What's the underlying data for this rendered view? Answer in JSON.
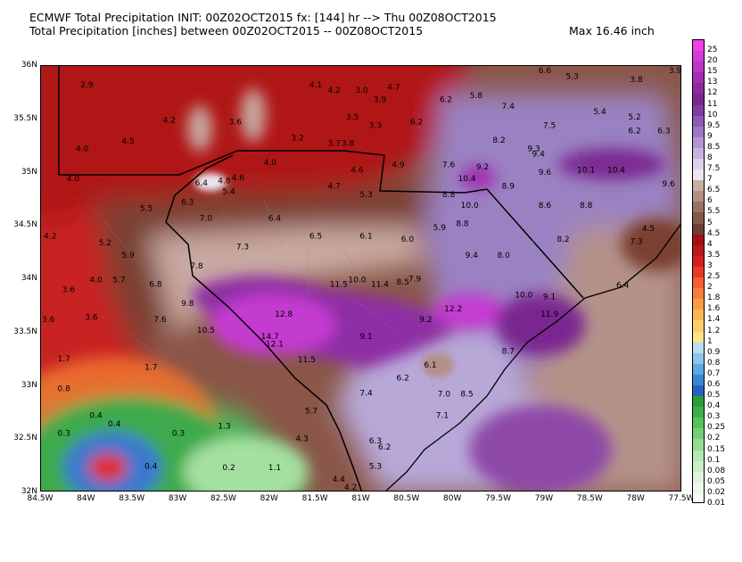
{
  "header": {
    "line1": "ECMWF Total Precipitation INIT: 00Z02OCT2015 fx: [144] hr --> Thu 00Z08OCT2015",
    "line2": "Total Precipitation [inches] between 00Z02OCT2015 -- 00Z08OCT2015",
    "max_label": "Max 16.46 inch"
  },
  "lat_labels": [
    "36N",
    "35.5N",
    "35N",
    "34.5N",
    "34N",
    "33.5N",
    "33N",
    "32.5N",
    "32N"
  ],
  "lon_labels": [
    "84.5W",
    "84W",
    "83.5W",
    "83W",
    "82.5W",
    "82W",
    "81.5W",
    "81W",
    "80.5W",
    "80W",
    "79.5W",
    "79W",
    "78.5W",
    "78W",
    "77.5W"
  ],
  "map_extent": {
    "lon_min": -84.5,
    "lon_max": -77.5,
    "lat_min": 32,
    "lat_max": 36
  },
  "colorbar": {
    "levels": [
      "25",
      "20",
      "15",
      "13",
      "12",
      "11",
      "10",
      "9.5",
      "9",
      "8.5",
      "8",
      "7.5",
      "7",
      "6.5",
      "6",
      "5.5",
      "5",
      "4.5",
      "4",
      "3.5",
      "3",
      "2.5",
      "2",
      "1.8",
      "1.6",
      "1.4",
      "1.2",
      "1",
      "0.9",
      "0.8",
      "0.7",
      "0.6",
      "0.5",
      "0.4",
      "0.3",
      "0.25",
      "0.2",
      "0.15",
      "0.1",
      "0.08",
      "0.05",
      "0.02",
      "0.01"
    ],
    "colors": [
      "#f03ee8",
      "#d43ad8",
      "#bc35c4",
      "#a22fb0",
      "#8c2a9c",
      "#7a2890",
      "#7c3ea2",
      "#8c5ab2",
      "#9e78c2",
      "#b296d2",
      "#c6b4e0",
      "#dcd2ec",
      "#ece6f0",
      "#c9aea6",
      "#b48f84",
      "#9c7266",
      "#86584c",
      "#6e3e34",
      "#a01010",
      "#bc1818",
      "#d42020",
      "#e83828",
      "#f45e30",
      "#f67e3c",
      "#f89c48",
      "#fab656",
      "#fccf66",
      "#fde48a",
      "#b8dcf4",
      "#8cc4ec",
      "#5ea8e2",
      "#3a86d2",
      "#2a60c0",
      "#2a9c3a",
      "#3cb048",
      "#56c25c",
      "#74cf76",
      "#94dc92",
      "#b6e8b2",
      "#cceec8",
      "#dff4dc",
      "#eef8ec",
      "#f8fbf6"
    ]
  },
  "precip_labels": [
    {
      "t": "2.9",
      "lon": -84.0,
      "lat": 35.8
    },
    {
      "t": "4.1",
      "lon": -81.5,
      "lat": 35.8
    },
    {
      "t": "4.2",
      "lon": -81.3,
      "lat": 35.75
    },
    {
      "t": "3.0",
      "lon": -81.0,
      "lat": 35.75
    },
    {
      "t": "4.7",
      "lon": -80.65,
      "lat": 35.78
    },
    {
      "t": "3.9",
      "lon": -80.8,
      "lat": 35.66
    },
    {
      "t": "6.2",
      "lon": -80.08,
      "lat": 35.66
    },
    {
      "t": "5.8",
      "lon": -79.75,
      "lat": 35.7
    },
    {
      "t": "6.6",
      "lon": -79.0,
      "lat": 35.95
    },
    {
      "t": "5.3",
      "lon": -78.7,
      "lat": 35.88
    },
    {
      "t": "3.8",
      "lon": -78.0,
      "lat": 35.85
    },
    {
      "t": "3.9",
      "lon": -77.57,
      "lat": 35.95
    },
    {
      "t": "7.4",
      "lon": -79.4,
      "lat": 35.6
    },
    {
      "t": "5.4",
      "lon": -78.4,
      "lat": 35.55
    },
    {
      "t": "5.2",
      "lon": -78.02,
      "lat": 35.5
    },
    {
      "t": "3.5",
      "lon": -81.1,
      "lat": 35.5
    },
    {
      "t": "4.2",
      "lon": -83.1,
      "lat": 35.47
    },
    {
      "t": "3.6",
      "lon": -82.38,
      "lat": 35.45
    },
    {
      "t": "3.3",
      "lon": -80.85,
      "lat": 35.42
    },
    {
      "t": "6.2",
      "lon": -80.4,
      "lat": 35.45
    },
    {
      "t": "7.5",
      "lon": -78.95,
      "lat": 35.42
    },
    {
      "t": "6.2",
      "lon": -78.02,
      "lat": 35.37
    },
    {
      "t": "6.3",
      "lon": -77.7,
      "lat": 35.37
    },
    {
      "t": "3.2",
      "lon": -81.7,
      "lat": 35.3
    },
    {
      "t": "3.7",
      "lon": -81.3,
      "lat": 35.25
    },
    {
      "t": "3.8",
      "lon": -81.15,
      "lat": 35.25
    },
    {
      "t": "8.2",
      "lon": -79.5,
      "lat": 35.28
    },
    {
      "t": "9.3",
      "lon": -79.12,
      "lat": 35.2
    },
    {
      "t": "9.4",
      "lon": -79.07,
      "lat": 35.15
    },
    {
      "t": "4.5",
      "lon": -83.55,
      "lat": 35.27
    },
    {
      "t": "4.0",
      "lon": -84.05,
      "lat": 35.2
    },
    {
      "t": "4.0",
      "lon": -82.0,
      "lat": 35.07
    },
    {
      "t": "4.6",
      "lon": -81.05,
      "lat": 35.0
    },
    {
      "t": "4.9",
      "lon": -80.6,
      "lat": 35.05
    },
    {
      "t": "7.6",
      "lon": -80.05,
      "lat": 35.05
    },
    {
      "t": "9.2",
      "lon": -79.68,
      "lat": 35.03
    },
    {
      "t": "9.6",
      "lon": -79.0,
      "lat": 34.98
    },
    {
      "t": "10.1",
      "lon": -78.55,
      "lat": 35.0
    },
    {
      "t": "10.4",
      "lon": -78.22,
      "lat": 35.0
    },
    {
      "t": "4.0",
      "lon": -84.15,
      "lat": 34.92
    },
    {
      "t": "6.4",
      "lon": -82.75,
      "lat": 34.88
    },
    {
      "t": "4.8",
      "lon": -82.5,
      "lat": 34.9
    },
    {
      "t": "4.6",
      "lon": -82.35,
      "lat": 34.93
    },
    {
      "t": "5.4",
      "lon": -82.45,
      "lat": 34.8
    },
    {
      "t": "4.7",
      "lon": -81.3,
      "lat": 34.85
    },
    {
      "t": "5.3",
      "lon": -80.95,
      "lat": 34.77
    },
    {
      "t": "10.4",
      "lon": -79.85,
      "lat": 34.92
    },
    {
      "t": "8.9",
      "lon": -79.4,
      "lat": 34.85
    },
    {
      "t": "9.6",
      "lon": -77.65,
      "lat": 34.87
    },
    {
      "t": "6.3",
      "lon": -82.9,
      "lat": 34.7
    },
    {
      "t": "8.8",
      "lon": -80.05,
      "lat": 34.77
    },
    {
      "t": "10.0",
      "lon": -79.82,
      "lat": 34.67
    },
    {
      "t": "8.6",
      "lon": -79.0,
      "lat": 34.67
    },
    {
      "t": "8.8",
      "lon": -78.55,
      "lat": 34.67
    },
    {
      "t": "5.5",
      "lon": -83.35,
      "lat": 34.64
    },
    {
      "t": "7.0",
      "lon": -82.7,
      "lat": 34.55
    },
    {
      "t": "6.4",
      "lon": -81.95,
      "lat": 34.55
    },
    {
      "t": "8.8",
      "lon": -79.9,
      "lat": 34.5
    },
    {
      "t": "4.2",
      "lon": -84.4,
      "lat": 34.38
    },
    {
      "t": "5.2",
      "lon": -83.8,
      "lat": 34.32
    },
    {
      "t": "6.5",
      "lon": -81.5,
      "lat": 34.38
    },
    {
      "t": "6.1",
      "lon": -80.95,
      "lat": 34.38
    },
    {
      "t": "6.0",
      "lon": -80.5,
      "lat": 34.35
    },
    {
      "t": "5.9",
      "lon": -80.15,
      "lat": 34.46
    },
    {
      "t": "8.2",
      "lon": -78.8,
      "lat": 34.35
    },
    {
      "t": "7.3",
      "lon": -78.0,
      "lat": 34.33
    },
    {
      "t": "4.5",
      "lon": -77.87,
      "lat": 34.45
    },
    {
      "t": "7.3",
      "lon": -82.3,
      "lat": 34.28
    },
    {
      "t": "5.9",
      "lon": -83.55,
      "lat": 34.2
    },
    {
      "t": "9.4",
      "lon": -79.8,
      "lat": 34.2
    },
    {
      "t": "8.0",
      "lon": -79.45,
      "lat": 34.2
    },
    {
      "t": "7.8",
      "lon": -82.8,
      "lat": 34.1
    },
    {
      "t": "3.6",
      "lon": -84.2,
      "lat": 33.88
    },
    {
      "t": "4.0",
      "lon": -83.9,
      "lat": 33.97
    },
    {
      "t": "5.7",
      "lon": -83.65,
      "lat": 33.97
    },
    {
      "t": "6.8",
      "lon": -83.25,
      "lat": 33.93
    },
    {
      "t": "11.5",
      "lon": -81.25,
      "lat": 33.93
    },
    {
      "t": "10.0",
      "lon": -81.05,
      "lat": 33.97
    },
    {
      "t": "11.4",
      "lon": -80.8,
      "lat": 33.93
    },
    {
      "t": "8.5",
      "lon": -80.55,
      "lat": 33.95
    },
    {
      "t": "7.9",
      "lon": -80.42,
      "lat": 33.98
    },
    {
      "t": "10.0",
      "lon": -79.23,
      "lat": 33.83
    },
    {
      "t": "9.1",
      "lon": -78.95,
      "lat": 33.81
    },
    {
      "t": "6.4",
      "lon": -78.15,
      "lat": 33.92
    },
    {
      "t": "9.8",
      "lon": -82.9,
      "lat": 33.75
    },
    {
      "t": "12.8",
      "lon": -81.85,
      "lat": 33.65
    },
    {
      "t": "12.2",
      "lon": -80.0,
      "lat": 33.7
    },
    {
      "t": "11.9",
      "lon": -78.95,
      "lat": 33.65
    },
    {
      "t": "3.6",
      "lon": -84.42,
      "lat": 33.6
    },
    {
      "t": "3.6",
      "lon": -83.95,
      "lat": 33.62
    },
    {
      "t": "7.6",
      "lon": -83.2,
      "lat": 33.6
    },
    {
      "t": "10.5",
      "lon": -82.7,
      "lat": 33.5
    },
    {
      "t": "9.2",
      "lon": -80.3,
      "lat": 33.6
    },
    {
      "t": "14.7",
      "lon": -82.0,
      "lat": 33.44
    },
    {
      "t": "12.1",
      "lon": -81.95,
      "lat": 33.37
    },
    {
      "t": "9.1",
      "lon": -80.95,
      "lat": 33.44
    },
    {
      "t": "8.7",
      "lon": -79.4,
      "lat": 33.3
    },
    {
      "t": "1.7",
      "lon": -84.25,
      "lat": 33.23
    },
    {
      "t": "1.7",
      "lon": -83.3,
      "lat": 33.15
    },
    {
      "t": "11.5",
      "lon": -81.6,
      "lat": 33.22
    },
    {
      "t": "6.1",
      "lon": -80.25,
      "lat": 33.17
    },
    {
      "t": "6.2",
      "lon": -80.55,
      "lat": 33.05
    },
    {
      "t": "0.8",
      "lon": -84.25,
      "lat": 32.95
    },
    {
      "t": "7.4",
      "lon": -80.95,
      "lat": 32.91
    },
    {
      "t": "7.0",
      "lon": -80.1,
      "lat": 32.9
    },
    {
      "t": "8.5",
      "lon": -79.85,
      "lat": 32.9
    },
    {
      "t": "0.4",
      "lon": -83.9,
      "lat": 32.7
    },
    {
      "t": "0.4",
      "lon": -83.7,
      "lat": 32.62
    },
    {
      "t": "5.7",
      "lon": -81.55,
      "lat": 32.74
    },
    {
      "t": "7.1",
      "lon": -80.12,
      "lat": 32.7
    },
    {
      "t": "1.3",
      "lon": -82.5,
      "lat": 32.6
    },
    {
      "t": "0.3",
      "lon": -84.25,
      "lat": 32.53
    },
    {
      "t": "0.3",
      "lon": -83.0,
      "lat": 32.53
    },
    {
      "t": "4.3",
      "lon": -81.65,
      "lat": 32.48
    },
    {
      "t": "6.3",
      "lon": -80.85,
      "lat": 32.46
    },
    {
      "t": "6.2",
      "lon": -80.75,
      "lat": 32.4
    },
    {
      "t": "0.4",
      "lon": -83.3,
      "lat": 32.22
    },
    {
      "t": "0.2",
      "lon": -82.45,
      "lat": 32.21
    },
    {
      "t": "1.1",
      "lon": -81.95,
      "lat": 32.21
    },
    {
      "t": "5.3",
      "lon": -80.85,
      "lat": 32.22
    },
    {
      "t": "4.4",
      "lon": -81.25,
      "lat": 32.1
    },
    {
      "t": "4.2",
      "lon": -81.12,
      "lat": 32.02
    }
  ]
}
